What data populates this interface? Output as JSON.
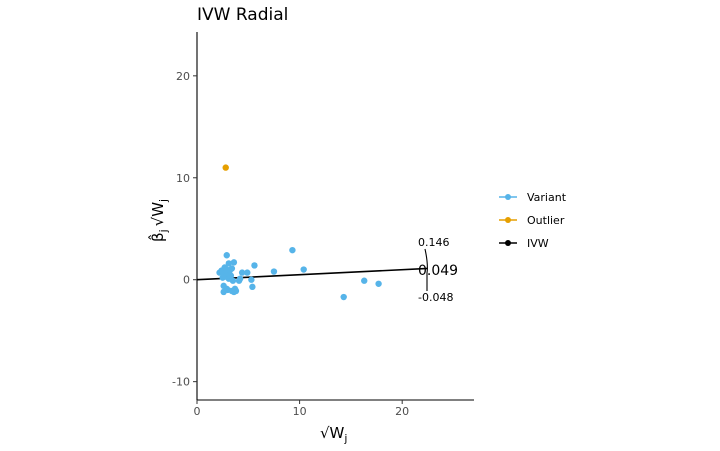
{
  "chart_data": {
    "type": "scatter",
    "title": "IVW Radial",
    "xlabel": "√W",
    "xlabel_sub": "j",
    "ylabel": "β̂",
    "ylabel_sub": "j",
    "ylabel_sqrt": "√W",
    "xlim": [
      0,
      27
    ],
    "ylim": [
      -11.8,
      24.3
    ],
    "x_ticks": [
      0,
      10,
      20
    ],
    "y_ticks": [
      -10,
      0,
      10,
      20
    ],
    "grid": false,
    "legend_position": "right",
    "legend": [
      {
        "label": "Variant",
        "color": "#56b4e9",
        "type": "point-line"
      },
      {
        "label": "Outlier",
        "color": "#e69f00",
        "type": "point-line"
      },
      {
        "label": "IVW",
        "color": "#000000",
        "type": "point-line"
      }
    ],
    "series": [
      {
        "name": "Variant",
        "color": "#56b4e9",
        "points": [
          [
            2.2,
            0.7
          ],
          [
            2.4,
            0.9
          ],
          [
            2.6,
            0.5
          ],
          [
            2.5,
            0.2
          ],
          [
            2.8,
            0.3
          ],
          [
            2.7,
            1.2
          ],
          [
            2.9,
            1.0
          ],
          [
            3.0,
            0.6
          ],
          [
            3.2,
            0.9
          ],
          [
            3.4,
            1.1
          ],
          [
            3.1,
            0.1
          ],
          [
            3.3,
            0.4
          ],
          [
            3.5,
            -0.1
          ],
          [
            2.9,
            2.4
          ],
          [
            3.1,
            1.6
          ],
          [
            3.6,
            1.7
          ],
          [
            2.6,
            -0.6
          ],
          [
            2.9,
            -0.9
          ],
          [
            2.6,
            -1.2
          ],
          [
            3.0,
            -1.0
          ],
          [
            3.4,
            -1.1
          ],
          [
            3.6,
            -1.2
          ],
          [
            3.7,
            -0.9
          ],
          [
            3.8,
            -1.1
          ],
          [
            4.1,
            -0.1
          ],
          [
            4.2,
            0.1
          ],
          [
            4.4,
            0.7
          ],
          [
            4.9,
            0.7
          ],
          [
            5.3,
            0.0
          ],
          [
            5.4,
            -0.7
          ],
          [
            5.6,
            1.4
          ],
          [
            7.5,
            0.8
          ],
          [
            9.3,
            2.9
          ],
          [
            10.4,
            1.0
          ],
          [
            14.3,
            -1.7
          ],
          [
            16.3,
            -0.1
          ],
          [
            17.7,
            -0.4
          ]
        ]
      },
      {
        "name": "Outlier",
        "color": "#e69f00",
        "points": [
          [
            2.8,
            11.0
          ]
        ]
      }
    ],
    "ivw_line": {
      "slope": 0.049,
      "color": "#000000",
      "x_start": 0,
      "x_end": 22.5
    },
    "annotations": {
      "estimate": "0.049",
      "upper": "0.146",
      "lower": "-0.048"
    }
  }
}
